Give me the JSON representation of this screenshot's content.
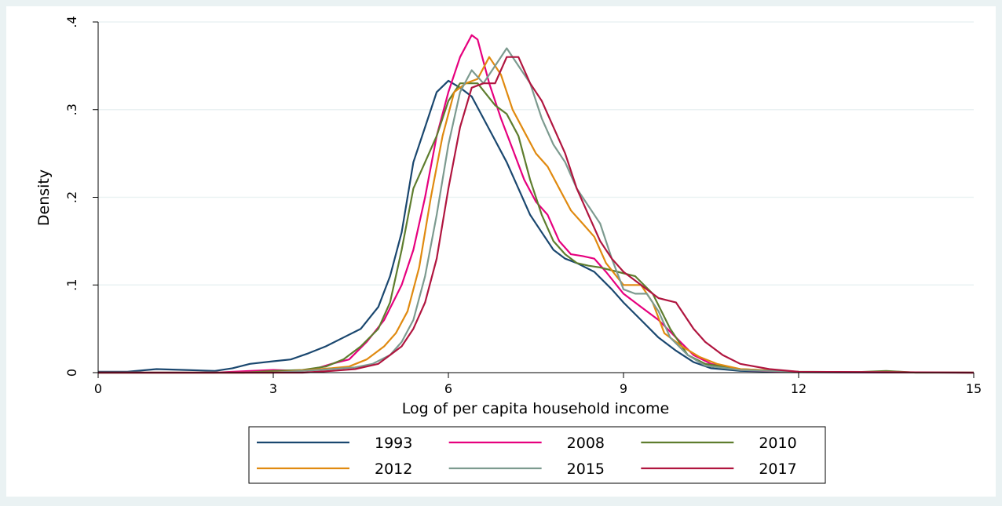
{
  "chart_data": {
    "type": "line",
    "title": "",
    "xlabel": "Log of per capita household income",
    "ylabel": "Density",
    "xlim": [
      0,
      15
    ],
    "ylim": [
      0,
      0.4
    ],
    "xticks": [
      0,
      3,
      6,
      9,
      12,
      15
    ],
    "xtick_labels": [
      "0",
      "3",
      "6",
      "9",
      "12",
      "15"
    ],
    "yticks": [
      0,
      0.1,
      0.2,
      0.3,
      0.4
    ],
    "ytick_labels": [
      "0",
      ".1",
      ".2",
      ".3",
      ".4"
    ],
    "grid": "horizontal",
    "legend_position": "bottom",
    "series": [
      {
        "name": "1993",
        "color": "#1a476f",
        "points": [
          [
            0,
            0.001
          ],
          [
            0.5,
            0.001
          ],
          [
            1.0,
            0.004
          ],
          [
            1.5,
            0.003
          ],
          [
            2.0,
            0.002
          ],
          [
            2.3,
            0.005
          ],
          [
            2.6,
            0.01
          ],
          [
            3.0,
            0.013
          ],
          [
            3.3,
            0.015
          ],
          [
            3.6,
            0.022
          ],
          [
            3.9,
            0.03
          ],
          [
            4.2,
            0.04
          ],
          [
            4.5,
            0.05
          ],
          [
            4.8,
            0.075
          ],
          [
            5.0,
            0.11
          ],
          [
            5.2,
            0.16
          ],
          [
            5.4,
            0.24
          ],
          [
            5.6,
            0.28
          ],
          [
            5.8,
            0.32
          ],
          [
            6.0,
            0.333
          ],
          [
            6.2,
            0.325
          ],
          [
            6.4,
            0.315
          ],
          [
            6.6,
            0.29
          ],
          [
            6.8,
            0.265
          ],
          [
            7.0,
            0.24
          ],
          [
            7.2,
            0.21
          ],
          [
            7.4,
            0.18
          ],
          [
            7.6,
            0.16
          ],
          [
            7.8,
            0.14
          ],
          [
            8.0,
            0.13
          ],
          [
            8.2,
            0.125
          ],
          [
            8.5,
            0.115
          ],
          [
            8.8,
            0.095
          ],
          [
            9.0,
            0.08
          ],
          [
            9.3,
            0.06
          ],
          [
            9.6,
            0.04
          ],
          [
            9.9,
            0.025
          ],
          [
            10.2,
            0.012
          ],
          [
            10.5,
            0.005
          ],
          [
            11.0,
            0.002
          ],
          [
            12.0,
            0.0005
          ],
          [
            15.0,
            0
          ]
        ]
      },
      {
        "name": "2008",
        "color": "#e6007e",
        "points": [
          [
            0,
            0
          ],
          [
            2.0,
            0
          ],
          [
            2.6,
            0.002
          ],
          [
            3.0,
            0.003
          ],
          [
            3.5,
            0.002
          ],
          [
            3.8,
            0.006
          ],
          [
            4.0,
            0.01
          ],
          [
            4.3,
            0.015
          ],
          [
            4.6,
            0.035
          ],
          [
            4.9,
            0.06
          ],
          [
            5.2,
            0.1
          ],
          [
            5.4,
            0.14
          ],
          [
            5.6,
            0.2
          ],
          [
            5.8,
            0.27
          ],
          [
            6.0,
            0.32
          ],
          [
            6.2,
            0.36
          ],
          [
            6.4,
            0.385
          ],
          [
            6.5,
            0.38
          ],
          [
            6.7,
            0.33
          ],
          [
            6.9,
            0.29
          ],
          [
            7.1,
            0.255
          ],
          [
            7.3,
            0.22
          ],
          [
            7.5,
            0.195
          ],
          [
            7.7,
            0.18
          ],
          [
            7.9,
            0.15
          ],
          [
            8.1,
            0.135
          ],
          [
            8.3,
            0.133
          ],
          [
            8.5,
            0.13
          ],
          [
            8.7,
            0.115
          ],
          [
            9.0,
            0.09
          ],
          [
            9.3,
            0.075
          ],
          [
            9.6,
            0.06
          ],
          [
            9.9,
            0.04
          ],
          [
            10.2,
            0.02
          ],
          [
            10.5,
            0.01
          ],
          [
            11.0,
            0.003
          ],
          [
            12.0,
            0.0005
          ],
          [
            15.0,
            0
          ]
        ]
      },
      {
        "name": "2010",
        "color": "#5e7d2e",
        "points": [
          [
            0,
            0
          ],
          [
            2.5,
            0
          ],
          [
            3.0,
            0.002
          ],
          [
            3.5,
            0.003
          ],
          [
            3.9,
            0.007
          ],
          [
            4.2,
            0.015
          ],
          [
            4.5,
            0.03
          ],
          [
            4.8,
            0.05
          ],
          [
            5.0,
            0.08
          ],
          [
            5.2,
            0.14
          ],
          [
            5.4,
            0.21
          ],
          [
            5.6,
            0.24
          ],
          [
            5.8,
            0.27
          ],
          [
            6.0,
            0.31
          ],
          [
            6.2,
            0.33
          ],
          [
            6.5,
            0.33
          ],
          [
            6.8,
            0.305
          ],
          [
            7.0,
            0.295
          ],
          [
            7.2,
            0.27
          ],
          [
            7.4,
            0.22
          ],
          [
            7.6,
            0.18
          ],
          [
            7.8,
            0.15
          ],
          [
            8.0,
            0.135
          ],
          [
            8.2,
            0.125
          ],
          [
            8.4,
            0.122
          ],
          [
            8.6,
            0.12
          ],
          [
            8.9,
            0.115
          ],
          [
            9.2,
            0.11
          ],
          [
            9.5,
            0.09
          ],
          [
            9.8,
            0.05
          ],
          [
            10.1,
            0.02
          ],
          [
            10.4,
            0.01
          ],
          [
            11.0,
            0.004
          ],
          [
            12.0,
            0.001
          ],
          [
            13.0,
            0.0005
          ],
          [
            13.5,
            0.002
          ],
          [
            14.0,
            0
          ],
          [
            15.0,
            0
          ]
        ]
      },
      {
        "name": "2012",
        "color": "#e08a10",
        "points": [
          [
            0,
            0
          ],
          [
            3.0,
            0
          ],
          [
            3.6,
            0.003
          ],
          [
            4.0,
            0.005
          ],
          [
            4.3,
            0.007
          ],
          [
            4.6,
            0.015
          ],
          [
            4.9,
            0.03
          ],
          [
            5.1,
            0.045
          ],
          [
            5.3,
            0.07
          ],
          [
            5.5,
            0.12
          ],
          [
            5.7,
            0.2
          ],
          [
            5.9,
            0.27
          ],
          [
            6.1,
            0.32
          ],
          [
            6.3,
            0.33
          ],
          [
            6.5,
            0.335
          ],
          [
            6.7,
            0.36
          ],
          [
            6.9,
            0.34
          ],
          [
            7.1,
            0.3
          ],
          [
            7.3,
            0.275
          ],
          [
            7.5,
            0.25
          ],
          [
            7.7,
            0.235
          ],
          [
            7.9,
            0.21
          ],
          [
            8.1,
            0.185
          ],
          [
            8.3,
            0.17
          ],
          [
            8.5,
            0.155
          ],
          [
            8.7,
            0.125
          ],
          [
            9.0,
            0.1
          ],
          [
            9.3,
            0.1
          ],
          [
            9.5,
            0.08
          ],
          [
            9.7,
            0.045
          ],
          [
            10.0,
            0.03
          ],
          [
            10.3,
            0.018
          ],
          [
            10.6,
            0.01
          ],
          [
            11.0,
            0.004
          ],
          [
            12.0,
            0.001
          ],
          [
            15.0,
            0
          ]
        ]
      },
      {
        "name": "2015",
        "color": "#7c9a8f",
        "points": [
          [
            0,
            0
          ],
          [
            3.0,
            0
          ],
          [
            3.5,
            0.002
          ],
          [
            4.0,
            0.004
          ],
          [
            4.4,
            0.006
          ],
          [
            4.7,
            0.01
          ],
          [
            5.0,
            0.02
          ],
          [
            5.2,
            0.035
          ],
          [
            5.4,
            0.06
          ],
          [
            5.6,
            0.11
          ],
          [
            5.8,
            0.18
          ],
          [
            6.0,
            0.26
          ],
          [
            6.2,
            0.32
          ],
          [
            6.4,
            0.345
          ],
          [
            6.6,
            0.33
          ],
          [
            6.8,
            0.35
          ],
          [
            7.0,
            0.37
          ],
          [
            7.2,
            0.35
          ],
          [
            7.4,
            0.33
          ],
          [
            7.6,
            0.29
          ],
          [
            7.8,
            0.26
          ],
          [
            8.0,
            0.24
          ],
          [
            8.2,
            0.21
          ],
          [
            8.4,
            0.19
          ],
          [
            8.6,
            0.17
          ],
          [
            8.8,
            0.13
          ],
          [
            9.0,
            0.095
          ],
          [
            9.2,
            0.09
          ],
          [
            9.4,
            0.09
          ],
          [
            9.6,
            0.07
          ],
          [
            9.8,
            0.04
          ],
          [
            10.1,
            0.02
          ],
          [
            10.4,
            0.008
          ],
          [
            11.0,
            0.003
          ],
          [
            12.0,
            0.001
          ],
          [
            15.0,
            0
          ]
        ]
      },
      {
        "name": "2017",
        "color": "#b0153f",
        "points": [
          [
            0,
            0
          ],
          [
            3.5,
            0
          ],
          [
            4.0,
            0.002
          ],
          [
            4.4,
            0.004
          ],
          [
            4.8,
            0.01
          ],
          [
            5.0,
            0.02
          ],
          [
            5.2,
            0.03
          ],
          [
            5.4,
            0.05
          ],
          [
            5.6,
            0.08
          ],
          [
            5.8,
            0.13
          ],
          [
            6.0,
            0.21
          ],
          [
            6.2,
            0.28
          ],
          [
            6.4,
            0.325
          ],
          [
            6.6,
            0.33
          ],
          [
            6.8,
            0.33
          ],
          [
            7.0,
            0.36
          ],
          [
            7.2,
            0.36
          ],
          [
            7.4,
            0.33
          ],
          [
            7.6,
            0.31
          ],
          [
            7.8,
            0.28
          ],
          [
            8.0,
            0.25
          ],
          [
            8.2,
            0.21
          ],
          [
            8.4,
            0.18
          ],
          [
            8.6,
            0.15
          ],
          [
            8.8,
            0.13
          ],
          [
            9.0,
            0.115
          ],
          [
            9.3,
            0.1
          ],
          [
            9.6,
            0.085
          ],
          [
            9.9,
            0.08
          ],
          [
            10.2,
            0.05
          ],
          [
            10.4,
            0.035
          ],
          [
            10.7,
            0.02
          ],
          [
            11.0,
            0.01
          ],
          [
            11.5,
            0.004
          ],
          [
            12.0,
            0.001
          ],
          [
            15.0,
            0
          ]
        ]
      }
    ]
  }
}
